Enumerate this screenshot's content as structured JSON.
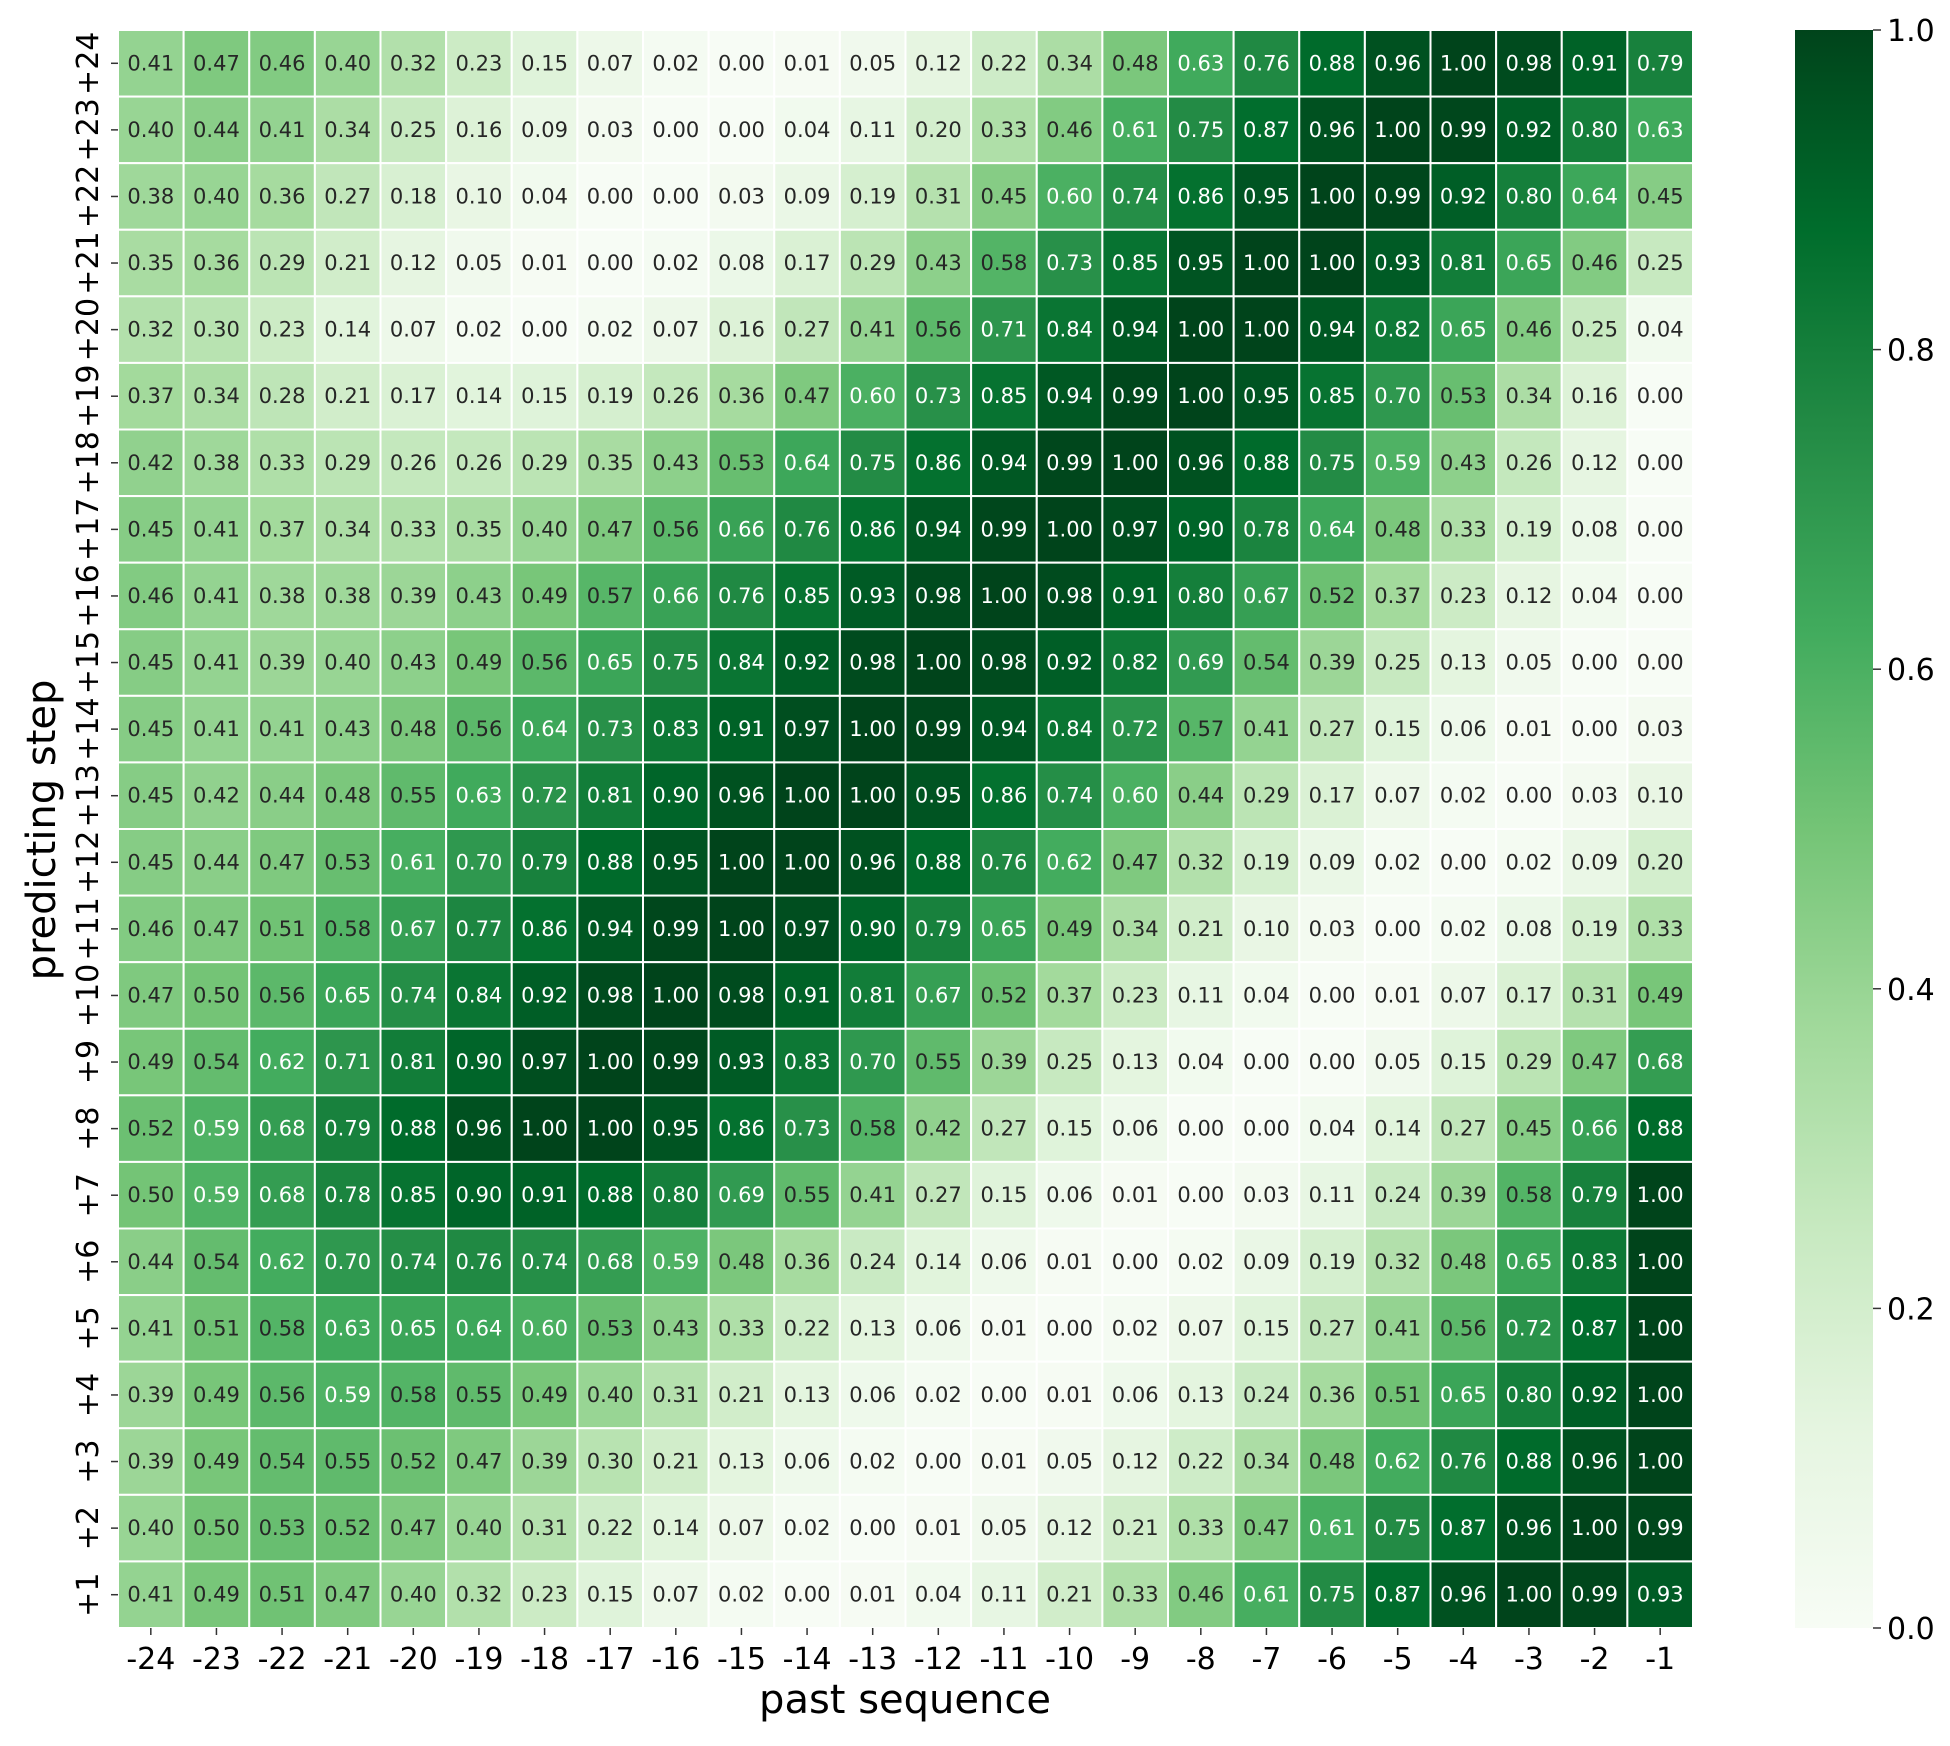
{
  "chart_data": {
    "type": "heatmap",
    "xlabel": "past sequence",
    "ylabel": "predicting step",
    "x_labels": [
      "-24",
      "-23",
      "-22",
      "-21",
      "-20",
      "-19",
      "-18",
      "-17",
      "-16",
      "-15",
      "-14",
      "-13",
      "-12",
      "-11",
      "-10",
      "-9",
      "-8",
      "-7",
      "-6",
      "-5",
      "-4",
      "-3",
      "-2",
      "-1"
    ],
    "y_labels": [
      "+24",
      "+23",
      "+22",
      "+21",
      "+20",
      "+19",
      "+18",
      "+17",
      "+16",
      "+15",
      "+14",
      "+13",
      "+12",
      "+11",
      "+10",
      "+9",
      "+8",
      "+7",
      "+6",
      "+5",
      "+4",
      "+3",
      "+2",
      "+1"
    ],
    "values": [
      [
        0.41,
        0.47,
        0.46,
        0.4,
        0.32,
        0.23,
        0.15,
        0.07,
        0.02,
        0.0,
        0.01,
        0.05,
        0.12,
        0.22,
        0.34,
        0.48,
        0.63,
        0.76,
        0.88,
        0.96,
        1.0,
        0.98,
        0.91,
        0.79
      ],
      [
        0.4,
        0.44,
        0.41,
        0.34,
        0.25,
        0.16,
        0.09,
        0.03,
        0.0,
        0.0,
        0.04,
        0.11,
        0.2,
        0.33,
        0.46,
        0.61,
        0.75,
        0.87,
        0.96,
        1.0,
        0.99,
        0.92,
        0.8,
        0.63
      ],
      [
        0.38,
        0.4,
        0.36,
        0.27,
        0.18,
        0.1,
        0.04,
        0.0,
        0.0,
        0.03,
        0.09,
        0.19,
        0.31,
        0.45,
        0.6,
        0.74,
        0.86,
        0.95,
        1.0,
        0.99,
        0.92,
        0.8,
        0.64,
        0.45
      ],
      [
        0.35,
        0.36,
        0.29,
        0.21,
        0.12,
        0.05,
        0.01,
        0.0,
        0.02,
        0.08,
        0.17,
        0.29,
        0.43,
        0.58,
        0.73,
        0.85,
        0.95,
        1.0,
        1.0,
        0.93,
        0.81,
        0.65,
        0.46,
        0.25
      ],
      [
        0.32,
        0.3,
        0.23,
        0.14,
        0.07,
        0.02,
        0.0,
        0.02,
        0.07,
        0.16,
        0.27,
        0.41,
        0.56,
        0.71,
        0.84,
        0.94,
        1.0,
        1.0,
        0.94,
        0.82,
        0.65,
        0.46,
        0.25,
        0.04
      ],
      [
        0.37,
        0.34,
        0.28,
        0.21,
        0.17,
        0.14,
        0.15,
        0.19,
        0.26,
        0.36,
        0.47,
        0.6,
        0.73,
        0.85,
        0.94,
        0.99,
        1.0,
        0.95,
        0.85,
        0.7,
        0.53,
        0.34,
        0.16,
        0.0
      ],
      [
        0.42,
        0.38,
        0.33,
        0.29,
        0.26,
        0.26,
        0.29,
        0.35,
        0.43,
        0.53,
        0.64,
        0.75,
        0.86,
        0.94,
        0.99,
        1.0,
        0.96,
        0.88,
        0.75,
        0.59,
        0.43,
        0.26,
        0.12,
        0.0
      ],
      [
        0.45,
        0.41,
        0.37,
        0.34,
        0.33,
        0.35,
        0.4,
        0.47,
        0.56,
        0.66,
        0.76,
        0.86,
        0.94,
        0.99,
        1.0,
        0.97,
        0.9,
        0.78,
        0.64,
        0.48,
        0.33,
        0.19,
        0.08,
        0.0
      ],
      [
        0.46,
        0.41,
        0.38,
        0.38,
        0.39,
        0.43,
        0.49,
        0.57,
        0.66,
        0.76,
        0.85,
        0.93,
        0.98,
        1.0,
        0.98,
        0.91,
        0.8,
        0.67,
        0.52,
        0.37,
        0.23,
        0.12,
        0.04,
        0.0
      ],
      [
        0.45,
        0.41,
        0.39,
        0.4,
        0.43,
        0.49,
        0.56,
        0.65,
        0.75,
        0.84,
        0.92,
        0.98,
        1.0,
        0.98,
        0.92,
        0.82,
        0.69,
        0.54,
        0.39,
        0.25,
        0.13,
        0.05,
        0.0,
        0.0
      ],
      [
        0.45,
        0.41,
        0.41,
        0.43,
        0.48,
        0.56,
        0.64,
        0.73,
        0.83,
        0.91,
        0.97,
        1.0,
        0.99,
        0.94,
        0.84,
        0.72,
        0.57,
        0.41,
        0.27,
        0.15,
        0.06,
        0.01,
        0.0,
        0.03
      ],
      [
        0.45,
        0.42,
        0.44,
        0.48,
        0.55,
        0.63,
        0.72,
        0.81,
        0.9,
        0.96,
        1.0,
        1.0,
        0.95,
        0.86,
        0.74,
        0.6,
        0.44,
        0.29,
        0.17,
        0.07,
        0.02,
        0.0,
        0.03,
        0.1
      ],
      [
        0.45,
        0.44,
        0.47,
        0.53,
        0.61,
        0.7,
        0.79,
        0.88,
        0.95,
        1.0,
        1.0,
        0.96,
        0.88,
        0.76,
        0.62,
        0.47,
        0.32,
        0.19,
        0.09,
        0.02,
        0.0,
        0.02,
        0.09,
        0.2
      ],
      [
        0.46,
        0.47,
        0.51,
        0.58,
        0.67,
        0.77,
        0.86,
        0.94,
        0.99,
        1.0,
        0.97,
        0.9,
        0.79,
        0.65,
        0.49,
        0.34,
        0.21,
        0.1,
        0.03,
        0.0,
        0.02,
        0.08,
        0.19,
        0.33
      ],
      [
        0.47,
        0.5,
        0.56,
        0.65,
        0.74,
        0.84,
        0.92,
        0.98,
        1.0,
        0.98,
        0.91,
        0.81,
        0.67,
        0.52,
        0.37,
        0.23,
        0.11,
        0.04,
        0.0,
        0.01,
        0.07,
        0.17,
        0.31,
        0.49
      ],
      [
        0.49,
        0.54,
        0.62,
        0.71,
        0.81,
        0.9,
        0.97,
        1.0,
        0.99,
        0.93,
        0.83,
        0.7,
        0.55,
        0.39,
        0.25,
        0.13,
        0.04,
        0.0,
        0.0,
        0.05,
        0.15,
        0.29,
        0.47,
        0.68
      ],
      [
        0.52,
        0.59,
        0.68,
        0.79,
        0.88,
        0.96,
        1.0,
        1.0,
        0.95,
        0.86,
        0.73,
        0.58,
        0.42,
        0.27,
        0.15,
        0.06,
        0.0,
        0.0,
        0.04,
        0.14,
        0.27,
        0.45,
        0.66,
        0.88
      ],
      [
        0.5,
        0.59,
        0.68,
        0.78,
        0.85,
        0.9,
        0.91,
        0.88,
        0.8,
        0.69,
        0.55,
        0.41,
        0.27,
        0.15,
        0.06,
        0.01,
        0.0,
        0.03,
        0.11,
        0.24,
        0.39,
        0.58,
        0.79,
        1.0
      ],
      [
        0.44,
        0.54,
        0.62,
        0.7,
        0.74,
        0.76,
        0.74,
        0.68,
        0.59,
        0.48,
        0.36,
        0.24,
        0.14,
        0.06,
        0.01,
        0.0,
        0.02,
        0.09,
        0.19,
        0.32,
        0.48,
        0.65,
        0.83,
        1.0
      ],
      [
        0.41,
        0.51,
        0.58,
        0.63,
        0.65,
        0.64,
        0.6,
        0.53,
        0.43,
        0.33,
        0.22,
        0.13,
        0.06,
        0.01,
        0.0,
        0.02,
        0.07,
        0.15,
        0.27,
        0.41,
        0.56,
        0.72,
        0.87,
        1.0
      ],
      [
        0.39,
        0.49,
        0.56,
        0.59,
        0.58,
        0.55,
        0.49,
        0.4,
        0.31,
        0.21,
        0.13,
        0.06,
        0.02,
        0.0,
        0.01,
        0.06,
        0.13,
        0.24,
        0.36,
        0.51,
        0.65,
        0.8,
        0.92,
        1.0
      ],
      [
        0.39,
        0.49,
        0.54,
        0.55,
        0.52,
        0.47,
        0.39,
        0.3,
        0.21,
        0.13,
        0.06,
        0.02,
        0.0,
        0.01,
        0.05,
        0.12,
        0.22,
        0.34,
        0.48,
        0.62,
        0.76,
        0.88,
        0.96,
        1.0
      ],
      [
        0.4,
        0.5,
        0.53,
        0.52,
        0.47,
        0.4,
        0.31,
        0.22,
        0.14,
        0.07,
        0.02,
        0.0,
        0.01,
        0.05,
        0.12,
        0.21,
        0.33,
        0.47,
        0.61,
        0.75,
        0.87,
        0.96,
        1.0,
        0.99
      ],
      [
        0.41,
        0.49,
        0.51,
        0.47,
        0.4,
        0.32,
        0.23,
        0.15,
        0.07,
        0.02,
        0.0,
        0.01,
        0.04,
        0.11,
        0.21,
        0.33,
        0.46,
        0.61,
        0.75,
        0.87,
        0.96,
        1.0,
        0.99,
        0.93
      ]
    ],
    "vmin": 0.0,
    "vmax": 1.0,
    "colormap": "Greens",
    "colormap_stops": [
      "#f7fcf5",
      "#e5f5e0",
      "#c7e9c0",
      "#a1d99b",
      "#74c476",
      "#41ab5d",
      "#238b45",
      "#006d2c",
      "#00441b"
    ],
    "colorbar_ticks": [
      "0.0",
      "0.2",
      "0.4",
      "0.6",
      "0.8",
      "1.0"
    ],
    "colorbar_tick_values": [
      0.0,
      0.2,
      0.4,
      0.6,
      0.8,
      1.0
    ],
    "grid_color": "#ffffff"
  }
}
